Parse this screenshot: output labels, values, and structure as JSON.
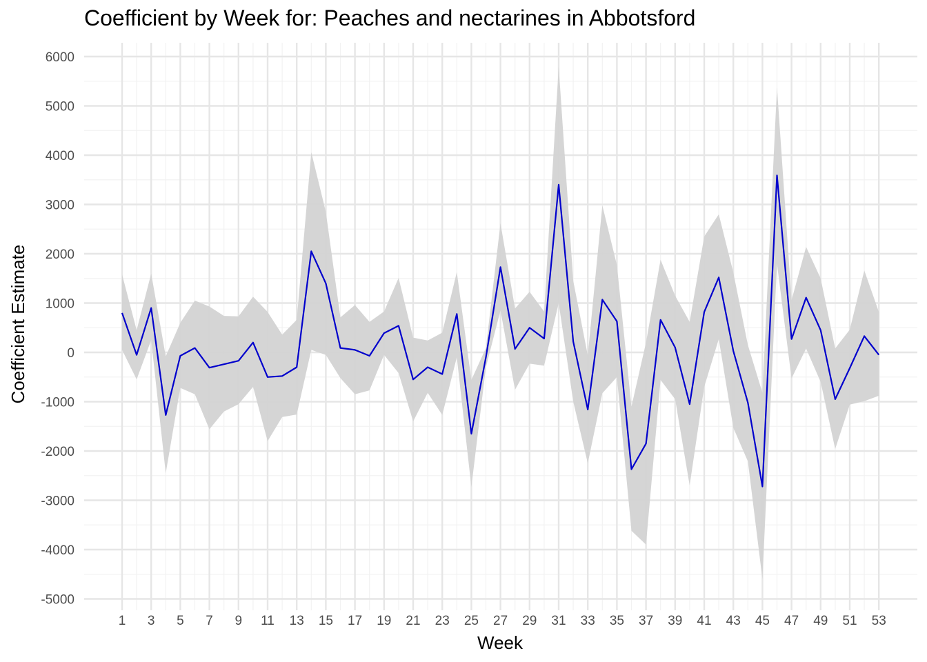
{
  "chart_data": {
    "type": "line",
    "title": "Coefficient by Week for: Peaches and nectarines in Abbotsford",
    "xlabel": "Week",
    "ylabel": "Coefficient Estimate",
    "xlim": [
      1,
      53
    ],
    "ylim": [
      -5000,
      6000
    ],
    "x_ticks": [
      "1",
      "3",
      "5",
      "7",
      "9",
      "11",
      "13",
      "15",
      "17",
      "19",
      "21",
      "23",
      "25",
      "27",
      "29",
      "31",
      "33",
      "35",
      "37",
      "39",
      "41",
      "43",
      "45",
      "47",
      "49",
      "51",
      "53"
    ],
    "y_ticks": [
      "6000",
      "5000",
      "4000",
      "3000",
      "2000",
      "1000",
      "0",
      "-1000",
      "-2000",
      "-3000",
      "-4000",
      "-5000"
    ],
    "grid": true,
    "line_color": "#0000cc",
    "band_color": "#d3d3d3",
    "series": [
      {
        "x": [
          1,
          2,
          3,
          4,
          5,
          6,
          7,
          8,
          9,
          10,
          11,
          12,
          13,
          14,
          15,
          16,
          17,
          18,
          19,
          20,
          21,
          22,
          23,
          24,
          25,
          26,
          27,
          28,
          29,
          30,
          31,
          32,
          33,
          34,
          35,
          36,
          37,
          38,
          39,
          40,
          41,
          42,
          43,
          44,
          45,
          46,
          47,
          48,
          49,
          50,
          51,
          52,
          53
        ],
        "values": [
          800,
          -50,
          900,
          -1270,
          -70,
          90,
          -310,
          -240,
          -170,
          200,
          -500,
          -480,
          -300,
          2050,
          1400,
          90,
          50,
          -70,
          390,
          540,
          -550,
          -300,
          -440,
          780,
          -1650,
          -100,
          1730,
          70,
          500,
          280,
          3400,
          220,
          -1160,
          1070,
          630,
          -2370,
          -1850,
          660,
          100,
          -1050,
          820,
          1520,
          30,
          -1020,
          -2720,
          3590,
          270,
          1110,
          450,
          -950,
          -320,
          330,
          -50
        ],
        "lower": [
          50,
          -550,
          250,
          -2450,
          -720,
          -850,
          -1560,
          -1200,
          -1050,
          -700,
          -1800,
          -1310,
          -1260,
          50,
          -50,
          -520,
          -850,
          -770,
          -50,
          -420,
          -1400,
          -820,
          -1270,
          -100,
          -2730,
          -300,
          850,
          -760,
          -230,
          -270,
          1000,
          -1000,
          -2250,
          -830,
          -500,
          -3620,
          -3900,
          -560,
          -950,
          -2700,
          -700,
          270,
          -1530,
          -2210,
          -4600,
          1800,
          -530,
          80,
          -600,
          -1960,
          -1060,
          -990,
          -880
        ],
        "upper": [
          1580,
          450,
          1600,
          -80,
          600,
          1050,
          930,
          740,
          730,
          1130,
          820,
          360,
          660,
          4060,
          2850,
          710,
          960,
          620,
          830,
          1510,
          300,
          240,
          400,
          1630,
          -560,
          90,
          2620,
          890,
          1230,
          830,
          5800,
          1450,
          -60,
          2980,
          1770,
          -1100,
          200,
          1880,
          1150,
          620,
          2350,
          2800,
          1620,
          150,
          -820,
          5380,
          1060,
          2140,
          1500,
          80,
          460,
          1660,
          820
        ]
      }
    ]
  }
}
